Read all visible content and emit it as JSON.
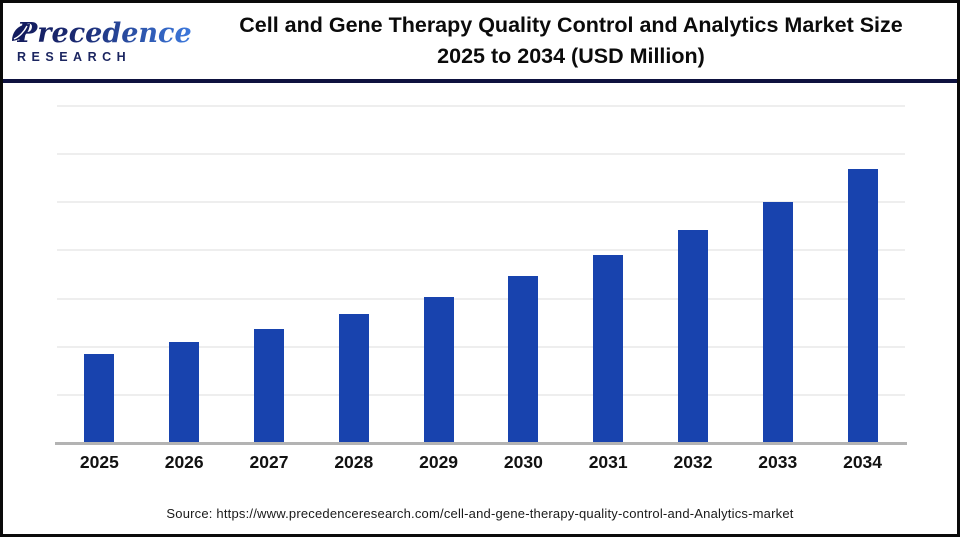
{
  "header": {
    "logo": {
      "brand_line1": "Precedence",
      "brand_line2": "RESEARCH",
      "navy_color": "#1b2560",
      "blue_color": "#2f6fd0"
    },
    "title_line1": "Cell and Gene Therapy Quality Control and Analytics Market Size",
    "title_line2": "2025 to 2034 (USD Million)",
    "separator_color": "#0e123f"
  },
  "chart_data": {
    "type": "bar",
    "title": "Cell and Gene Therapy Quality Control and Analytics Market Size 2025 to 2034 (USD Million)",
    "categories": [
      "2025",
      "2026",
      "2027",
      "2028",
      "2029",
      "2030",
      "2031",
      "2032",
      "2033",
      "2034"
    ],
    "values": [
      1.84,
      2.1,
      2.37,
      2.69,
      3.04,
      3.46,
      3.91,
      4.43,
      5.01,
      5.7
    ],
    "value_units": "relative gridline units (y-axis has no visible tick labels; 1 unit = one horizontal gridline interval)",
    "ylim": [
      0,
      7
    ],
    "gridline_interval": 1,
    "grid": "horizontal",
    "legend": "none",
    "xlabel": "",
    "ylabel": "",
    "bar_color": "#1843ae",
    "gridline_color": "#eeeeee",
    "axis_line_color": "#b3b3b3"
  },
  "footer": {
    "source_text": "Source: https://www.precedenceresearch.com/cell-and-gene-therapy-quality-control-and-Analytics-market"
  }
}
